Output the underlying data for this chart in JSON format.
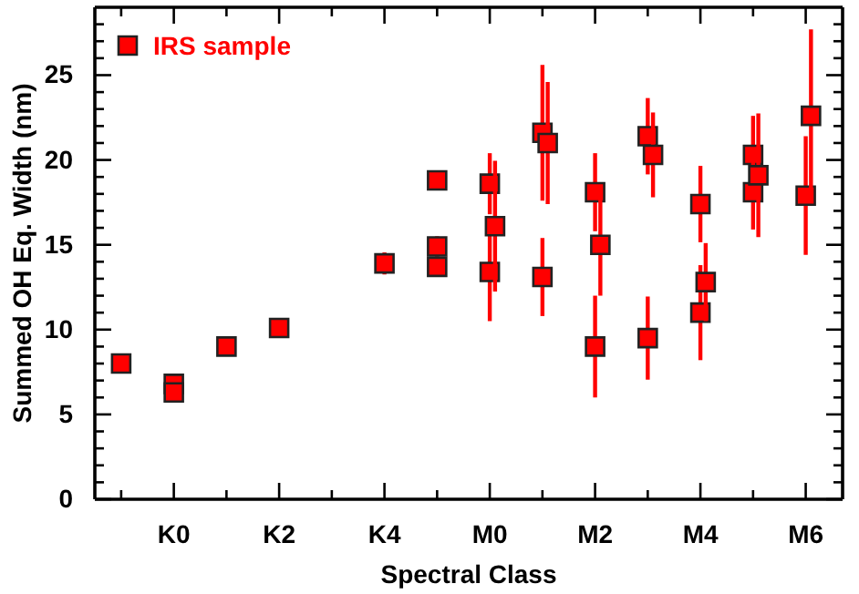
{
  "chart_data": {
    "type": "scatter",
    "xlabel": "Spectral Class",
    "ylabel": "Summed OH Eq. Width (nm)",
    "categories": [
      null,
      "K0",
      null,
      "K2",
      null,
      "K4",
      null,
      "M0",
      null,
      "M2",
      null,
      "M4",
      null,
      "M6"
    ],
    "ylim": [
      0,
      29
    ],
    "yticks": [
      0,
      {
        "value": 1,
        "label": null
      },
      {
        "value": 2,
        "label": null
      },
      {
        "value": 3,
        "label": null
      },
      {
        "value": 4,
        "label": null
      },
      5,
      {
        "value": 6,
        "label": null
      },
      {
        "value": 7,
        "label": null
      },
      {
        "value": 8,
        "label": null
      },
      {
        "value": 9,
        "label": null
      },
      10,
      {
        "value": 11,
        "label": null
      },
      {
        "value": 12,
        "label": null
      },
      {
        "value": 13,
        "label": null
      },
      {
        "value": 14,
        "label": null
      },
      15,
      {
        "value": 16,
        "label": null
      },
      {
        "value": 17,
        "label": null
      },
      {
        "value": 18,
        "label": null
      },
      {
        "value": 19,
        "label": null
      },
      20,
      {
        "value": 21,
        "label": null
      },
      {
        "value": 22,
        "label": null
      },
      {
        "value": 23,
        "label": null
      },
      {
        "value": 24,
        "label": null
      },
      25,
      {
        "value": 26,
        "label": null
      },
      {
        "value": 27,
        "label": null
      },
      {
        "value": 28,
        "label": null
      }
    ],
    "marker": "square",
    "legend": "top left",
    "series": [
      {
        "name": "IRS sample",
        "color": "#ff0000",
        "values": [
          8.0,
          6.8,
          9.0,
          10.1,
          null,
          13.9,
          18.8,
          18.6,
          21.6,
          18.1,
          21.4,
          17.4,
          20.3,
          17.9
        ],
        "errors": [
          null,
          null,
          null,
          0.3,
          null,
          0.65,
          0.55,
          1.8,
          4.0,
          2.3,
          2.25,
          2.25,
          2.3,
          3.5
        ]
      },
      {
        "color": "#ff0000",
        "values": [
          null,
          6.3,
          null,
          null,
          null,
          null,
          14.9,
          13.4,
          13.1,
          9.0,
          9.5,
          11.0,
          18.1,
          null
        ],
        "errors": [
          null,
          null,
          null,
          null,
          null,
          null,
          0.6,
          2.9,
          2.3,
          3.0,
          2.45,
          2.8,
          2.2,
          null
        ]
      },
      {
        "color": "#ff0000",
        "values": [
          null,
          null,
          null,
          null,
          null,
          null,
          13.7,
          null,
          null,
          null,
          null,
          null,
          null,
          null
        ],
        "errors": [
          null,
          null,
          null,
          null,
          null,
          null,
          0.3,
          null,
          null,
          null,
          null,
          null,
          null,
          null
        ]
      },
      {
        "color": "#ff0000",
        "values": [
          null,
          null,
          null,
          null,
          null,
          null,
          null,
          16.1,
          21.0,
          15.0,
          20.3,
          12.8,
          19.1,
          22.6
        ],
        "errors": [
          null,
          null,
          null,
          null,
          null,
          null,
          null,
          3.85,
          3.6,
          3.0,
          2.5,
          2.3,
          3.65,
          5.1
        ]
      }
    ]
  }
}
